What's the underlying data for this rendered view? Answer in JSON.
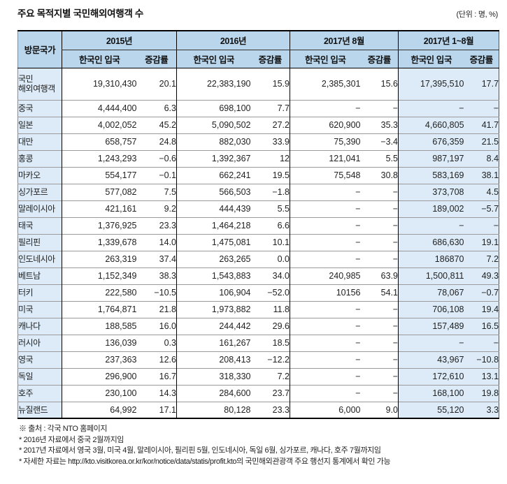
{
  "title": "주요 목적지별 국민해외여행객 수",
  "unit_note": "(단위 : 명, %)",
  "colors": {
    "header_bg": "#b9d6ec",
    "highlight_bg": "#dcebf7",
    "grid_line": "#9a9a9a",
    "strong_line": "#000000"
  },
  "footnotes": [
    "※  출처 : 각국 NTO 홈페이지",
    "*  2016년 자료에서 중국  2월까지임",
    "*  2017년 자료에서  영국 3월, 미국 4월, 말레이시아, 필리핀 5월, 인도네시아, 독일 6월, 싱가포르, 캐나다, 호주 7월까지임",
    "*  자세한 자료는  http://kto.visitkorea.or.kr/kor/notice/data/statis/profit.kto의  국민해외관광객  주요 행선지  통계에서  확인  가능"
  ],
  "chart_data": {
    "type": "table",
    "title": "주요 목적지별 국민해외여행객 수",
    "unit": "(단위 : 명, %)",
    "row_header": "방문국가",
    "column_groups": [
      "2015년",
      "2016년",
      "2017년 8월",
      "2017년 1~8월"
    ],
    "sub_columns": [
      "한국인 입국",
      "증감률"
    ],
    "rows": [
      {
        "country": "국민\n해외여행객",
        "values": [
          "19,310,430",
          "20.1",
          "22,383,190",
          "15.9",
          "2,385,301",
          "15.6",
          "17,395,510",
          "17.7"
        ]
      },
      {
        "country": "중국",
        "values": [
          "4,444,400",
          "6.3",
          "698,100",
          "7.7",
          "−",
          "−",
          "−",
          "−"
        ]
      },
      {
        "country": "일본",
        "values": [
          "4,002,052",
          "45.2",
          "5,090,502",
          "27.2",
          "620,900",
          "35.3",
          "4,660,805",
          "41.7"
        ]
      },
      {
        "country": "대만",
        "values": [
          "658,757",
          "24.8",
          "882,030",
          "33.9",
          "75,390",
          "−3.4",
          "676,359",
          "21.5"
        ]
      },
      {
        "country": "홍콩",
        "values": [
          "1,243,293",
          "−0.6",
          "1,392,367",
          "12",
          "121,041",
          "5.5",
          "987,197",
          "8.4"
        ]
      },
      {
        "country": "마카오",
        "values": [
          "554,177",
          "−0.1",
          "662,241",
          "19.5",
          "75,548",
          "30.8",
          "583,169",
          "38.1"
        ]
      },
      {
        "country": "싱가포르",
        "values": [
          "577,082",
          "7.5",
          "566,503",
          "−1.8",
          "−",
          "−",
          "373,708",
          "4.5"
        ]
      },
      {
        "country": "말레이시아",
        "values": [
          "421,161",
          "9.2",
          "444,439",
          "5.5",
          "−",
          "−",
          "189,002",
          "−5.7"
        ]
      },
      {
        "country": "태국",
        "values": [
          "1,376,925",
          "23.3",
          "1,464,218",
          "6.6",
          "−",
          "−",
          "−",
          "−"
        ]
      },
      {
        "country": "필리핀",
        "values": [
          "1,339,678",
          "14.0",
          "1,475,081",
          "10.1",
          "−",
          "−",
          "686,630",
          "19.1"
        ]
      },
      {
        "country": "인도네시아",
        "values": [
          "263,319",
          "37.4",
          "263,265",
          "0.0",
          "−",
          "−",
          "186870",
          "7.2"
        ]
      },
      {
        "country": "베트남",
        "values": [
          "1,152,349",
          "38.3",
          "1,543,883",
          "34.0",
          "240,985",
          "63.9",
          "1,500,811",
          "49.3"
        ]
      },
      {
        "country": "터키",
        "values": [
          "222,580",
          "−10.5",
          "106,904",
          "−52.0",
          "10156",
          "54.1",
          "78,067",
          "−0.7"
        ]
      },
      {
        "country": "미국",
        "values": [
          "1,764,871",
          "21.8",
          "1,973,882",
          "11.8",
          "−",
          "−",
          "706,108",
          "19.4"
        ]
      },
      {
        "country": "캐나다",
        "values": [
          "188,585",
          "16.0",
          "244,442",
          "29.6",
          "−",
          "−",
          "157,489",
          "16.5"
        ]
      },
      {
        "country": "러시아",
        "values": [
          "136,039",
          "0.3",
          "161,267",
          "18.5",
          "−",
          "−",
          "−",
          "−"
        ]
      },
      {
        "country": "영국",
        "values": [
          "237,363",
          "12.6",
          "208,413",
          "−12.2",
          "−",
          "−",
          "43,967",
          "−10.8"
        ]
      },
      {
        "country": "독일",
        "values": [
          "296,900",
          "16.7",
          "318,330",
          "7.2",
          "−",
          "−",
          "172,610",
          "13.1"
        ]
      },
      {
        "country": "호주",
        "values": [
          "230,100",
          "14.3",
          "284,600",
          "23.7",
          "−",
          "−",
          "168,100",
          "19.8"
        ]
      },
      {
        "country": "뉴질랜드",
        "values": [
          "64,992",
          "17.1",
          "80,128",
          "23.3",
          "6,000",
          "9.0",
          "55,120",
          "3.3"
        ]
      }
    ]
  }
}
